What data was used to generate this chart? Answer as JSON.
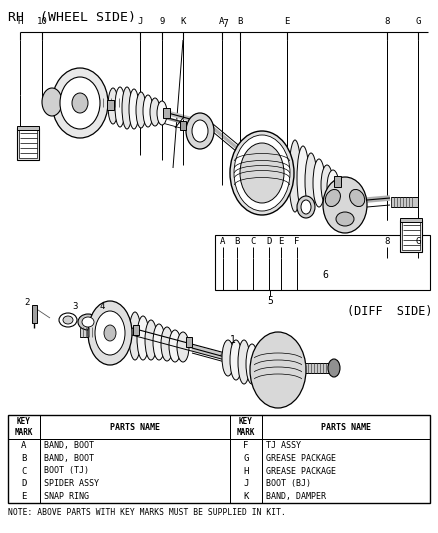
{
  "title": "RH  (WHEEL SIDE)",
  "diff_side_label": "(DIFF  SIDE)",
  "bg_color": "#ffffff",
  "line_color": "#000000",
  "table_data": {
    "left_keys": [
      "A",
      "B",
      "C",
      "D",
      "E"
    ],
    "left_parts": [
      "BAND, BOOT",
      "BAND, BOOT",
      "BOOT (TJ)",
      "SPIDER ASSY",
      "SNAP RING"
    ],
    "right_keys": [
      "F",
      "G",
      "H",
      "J",
      "K"
    ],
    "right_parts": [
      "TJ ASSY",
      "GREASE PACKAGE",
      "GREASE PACKAGE",
      "BOOT (BJ)",
      "BAND, DAMPER"
    ]
  },
  "note": "NOTE: ABOVE PARTS WITH KEY MARKS MUST BE SUPPLIED IN KIT.",
  "figw": 4.38,
  "figh": 5.33,
  "dpi": 100
}
